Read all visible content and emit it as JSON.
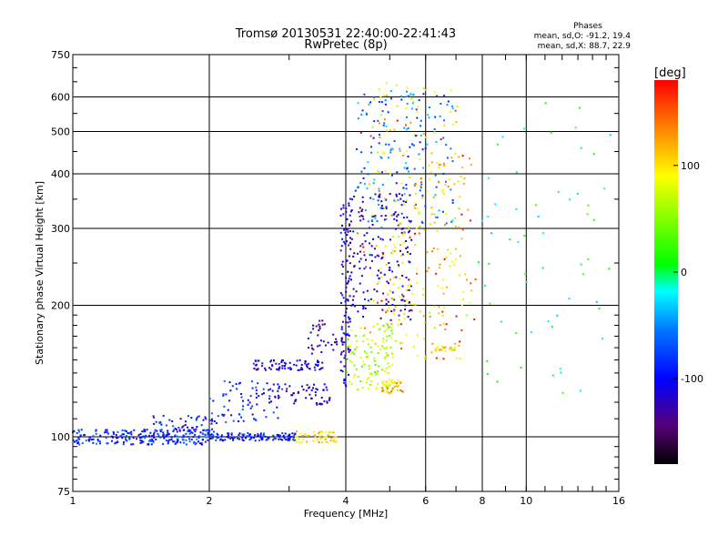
{
  "chart_data": {
    "type": "scatter",
    "title": "Tromsø 20130531 22:40:00-22:41:43",
    "subtitle": "RwPretec (8p)",
    "xlabel": "Frequency [MHz]",
    "ylabel": "Stationary phase Virtual Height [km]",
    "x_scale": "log",
    "y_scale": "log",
    "xlim": [
      1,
      16
    ],
    "ylim": [
      75,
      750
    ],
    "x_ticks": [
      1,
      2,
      4,
      6,
      8,
      10,
      16
    ],
    "x_tick_labels": [
      "1",
      "2",
      "4",
      "6",
      "8",
      "10",
      "16"
    ],
    "y_ticks": [
      75,
      100,
      200,
      300,
      400,
      500,
      600,
      750
    ],
    "y_tick_labels": [
      "75",
      "100",
      "200",
      "300",
      "400",
      "500",
      "600",
      "750"
    ],
    "grid": true,
    "phases_box": {
      "heading": "Phases",
      "line_o": "mean, sd,O: -91.2, 19.4",
      "line_x": "mean, sd,X: 88.7, 22.9"
    },
    "colorbar": {
      "unit_label": "[deg]",
      "ticks": [
        100,
        0,
        -100
      ],
      "tick_labels": [
        "100",
        "0",
        "-100"
      ],
      "range": [
        -180,
        180
      ],
      "colormap": "rainbow: black/purple at -180, blue at -100, cyan near -30, green at 0, yellow at 100, red at 180"
    },
    "clusters": [
      {
        "x": [
          1.0,
          2.0
        ],
        "y": [
          96,
          104
        ],
        "phase": -85,
        "n": 220
      },
      {
        "x": [
          2.0,
          3.1
        ],
        "y": [
          98,
          102
        ],
        "phase": -95,
        "n": 120
      },
      {
        "x": [
          1.5,
          2.1
        ],
        "y": [
          100,
          112
        ],
        "phase": -100,
        "n": 60
      },
      {
        "x": [
          3.1,
          3.9
        ],
        "y": [
          97,
          103
        ],
        "phase": 105,
        "n": 50
      },
      {
        "x": [
          2.0,
          2.9
        ],
        "y": [
          108,
          135
        ],
        "phase": -90,
        "n": 70
      },
      {
        "x": [
          2.5,
          3.6
        ],
        "y": [
          142,
          150
        ],
        "phase": -110,
        "n": 80
      },
      {
        "x": [
          2.7,
          3.7
        ],
        "y": [
          118,
          132
        ],
        "phase": -120,
        "n": 60
      },
      {
        "x": [
          3.3,
          4.0
        ],
        "y": [
          155,
          185
        ],
        "phase": -120,
        "n": 40
      },
      {
        "x": [
          3.9,
          4.1
        ],
        "y": [
          130,
          350
        ],
        "phase": -115,
        "n": 90
      },
      {
        "x": [
          4.0,
          5.6
        ],
        "y": [
          185,
          360
        ],
        "phase": -120,
        "n": 200
      },
      {
        "x": [
          4.0,
          5.1
        ],
        "y": [
          128,
          180
        ],
        "phase": 60,
        "n": 120
      },
      {
        "x": [
          4.5,
          7.3
        ],
        "y": [
          150,
          650
        ],
        "phase": 95,
        "n": 140
      },
      {
        "x": [
          4.2,
          6.9
        ],
        "y": [
          300,
          620
        ],
        "phase": -60,
        "n": 170
      },
      {
        "x": [
          5.0,
          7.6
        ],
        "y": [
          180,
          450
        ],
        "phase": 100,
        "n": 90
      },
      {
        "x": [
          4.8,
          5.4
        ],
        "y": [
          126,
          134
        ],
        "phase": 110,
        "n": 40
      },
      {
        "x": [
          4.2,
          7.8
        ],
        "y": [
          150,
          560
        ],
        "phase": 160,
        "n": 60
      },
      {
        "x": [
          6.3,
          7.0
        ],
        "y": [
          157,
          161
        ],
        "phase": 100,
        "n": 20
      },
      {
        "x": [
          7.8,
          15.5
        ],
        "y": [
          120,
          600
        ],
        "phase": 0,
        "n": 60
      }
    ]
  }
}
